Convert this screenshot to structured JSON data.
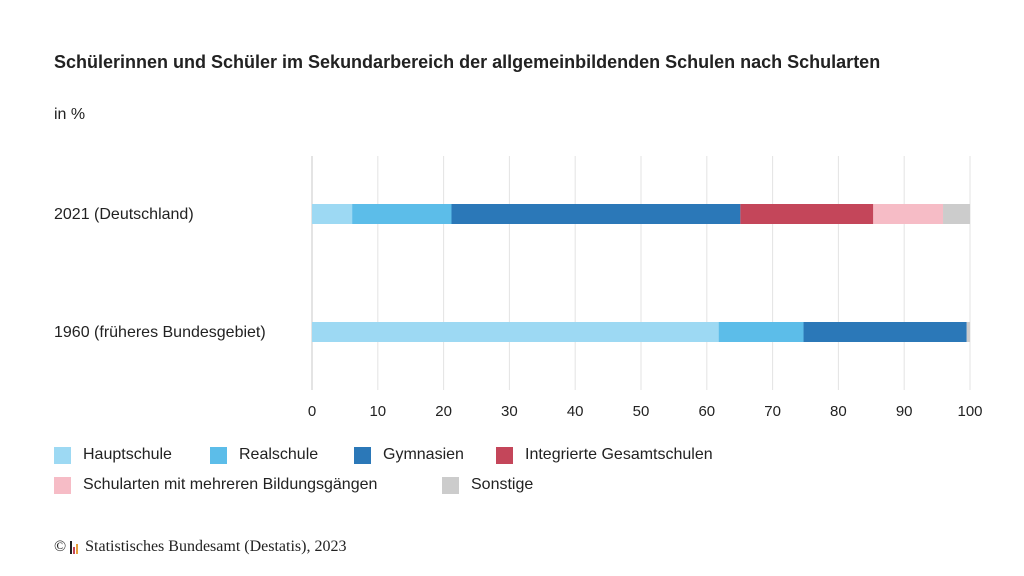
{
  "chart_data": {
    "type": "bar",
    "orientation": "horizontal",
    "stacked": true,
    "title": "Schülerinnen und Schüler im Sekundarbereich der allgemeinbildenden Schulen nach Schularten",
    "subtitle": "in %",
    "categories": [
      "2021 (Deutschland)",
      "1960 (früheres Bundesgebiet)"
    ],
    "series": [
      {
        "name": "Hauptschule",
        "color": "#9dd9f3",
        "values": [
          6.1,
          61.8
        ]
      },
      {
        "name": "Realschule",
        "color": "#5cbde9",
        "values": [
          15.1,
          12.9
        ]
      },
      {
        "name": "Gymnasien",
        "color": "#2b78b8",
        "values": [
          43.9,
          24.8
        ]
      },
      {
        "name": "Integrierte Gesamtschulen",
        "color": "#c4465a",
        "values": [
          20.2,
          0
        ]
      },
      {
        "name": "Schularten mit mehreren Bildungsgängen",
        "color": "#f6bcc6",
        "values": [
          10.6,
          0
        ]
      },
      {
        "name": "Sonstige",
        "color": "#cccccc",
        "values": [
          4.1,
          0.5
        ]
      }
    ],
    "xlim": [
      0,
      100
    ],
    "xticks": [
      "0",
      "10",
      "20",
      "30",
      "40",
      "50",
      "60",
      "70",
      "80",
      "90",
      "100"
    ],
    "grid": "vertical",
    "legend": "bottom"
  },
  "footer": {
    "copyright": "©",
    "source": "Statistisches Bundesamt (Destatis), 2023",
    "logo": "destatis-logo-icon"
  }
}
